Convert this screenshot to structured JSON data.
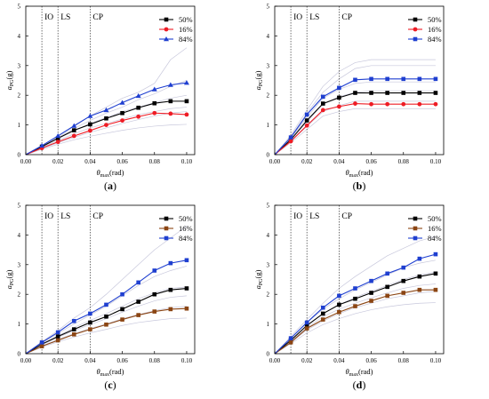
{
  "figure": {
    "panels": [
      {
        "label": "(a)",
        "label_plain": "a"
      },
      {
        "label": "(b)",
        "label_plain": "b"
      },
      {
        "label": "(c)",
        "label_plain": "c"
      },
      {
        "label": "(d)",
        "label_plain": "d"
      }
    ]
  },
  "colors": {
    "p50": "#000000",
    "p16": "#ee1c25",
    "p16_c": "#8b4513",
    "p84": "#1f3fd0",
    "individual": "#c8c8dc"
  },
  "chart_data": [
    {
      "type": "line",
      "panel": "a",
      "xlabel": "θmax(rad)",
      "ylabel": "aPG(g)",
      "xlim": [
        0,
        0.105
      ],
      "ylim": [
        0,
        5
      ],
      "xticks": [
        "0.00",
        "0.02",
        "0.04",
        "0.06",
        "0.08",
        "0.10"
      ],
      "yticks": [
        "0",
        "1",
        "2",
        "3",
        "4",
        "5"
      ],
      "limit_states": [
        {
          "name": "IO",
          "x": 0.01
        },
        {
          "name": "LS",
          "x": 0.02
        },
        {
          "name": "CP",
          "x": 0.04
        }
      ],
      "legend_position": "top-right",
      "x": [
        0.01,
        0.02,
        0.03,
        0.04,
        0.05,
        0.06,
        0.07,
        0.08,
        0.09,
        0.1
      ],
      "series": [
        {
          "name": "50%",
          "marker": "square",
          "color_key": "p50",
          "values": [
            0.27,
            0.55,
            0.82,
            1.02,
            1.22,
            1.4,
            1.58,
            1.73,
            1.8,
            1.8
          ]
        },
        {
          "name": "16%",
          "marker": "circle",
          "color_key": "p16",
          "values": [
            0.22,
            0.43,
            0.63,
            0.81,
            1.0,
            1.15,
            1.28,
            1.4,
            1.38,
            1.35
          ]
        },
        {
          "name": "84%",
          "marker": "triangle",
          "color_key": "p84",
          "values": [
            0.3,
            0.63,
            0.97,
            1.3,
            1.5,
            1.75,
            1.98,
            2.2,
            2.35,
            2.42
          ]
        }
      ],
      "individual_curves": [
        [
          0.3,
          0.62,
          0.95,
          1.3,
          1.6,
          1.9,
          2.1,
          2.4,
          3.2,
          3.6
        ],
        [
          0.28,
          0.58,
          0.88,
          1.15,
          1.4,
          1.6,
          1.85,
          2.05,
          2.3,
          2.5
        ],
        [
          0.26,
          0.54,
          0.8,
          1.05,
          1.25,
          1.45,
          1.6,
          1.75,
          1.9,
          2.0
        ],
        [
          0.24,
          0.48,
          0.7,
          0.9,
          1.05,
          1.2,
          1.35,
          1.45,
          1.55,
          1.6
        ],
        [
          0.2,
          0.4,
          0.58,
          0.75,
          0.9,
          1.05,
          1.18,
          1.3,
          1.4,
          1.45
        ],
        [
          0.18,
          0.35,
          0.5,
          0.62,
          0.72,
          0.82,
          0.9,
          0.96,
          1.0,
          1.02
        ]
      ]
    },
    {
      "type": "line",
      "panel": "b",
      "xlabel": "θmax(rad)",
      "ylabel": "aPG(g)",
      "xlim": [
        0,
        0.105
      ],
      "ylim": [
        0,
        5
      ],
      "xticks": [
        "0.00",
        "0.02",
        "0.04",
        "0.06",
        "0.08",
        "0.10"
      ],
      "yticks": [
        "0",
        "1",
        "2",
        "3",
        "4",
        "5"
      ],
      "limit_states": [
        {
          "name": "IO",
          "x": 0.01
        },
        {
          "name": "LS",
          "x": 0.02
        },
        {
          "name": "CP",
          "x": 0.04
        }
      ],
      "legend_position": "top-right",
      "x": [
        0.01,
        0.02,
        0.03,
        0.04,
        0.05,
        0.06,
        0.07,
        0.08,
        0.09,
        0.1
      ],
      "series": [
        {
          "name": "50%",
          "marker": "square",
          "color_key": "p50",
          "values": [
            0.5,
            1.15,
            1.72,
            1.92,
            2.08,
            2.08,
            2.08,
            2.08,
            2.08,
            2.08
          ]
        },
        {
          "name": "16%",
          "marker": "circle",
          "color_key": "p16",
          "values": [
            0.45,
            0.98,
            1.5,
            1.62,
            1.72,
            1.7,
            1.7,
            1.7,
            1.7,
            1.7
          ]
        },
        {
          "name": "84%",
          "marker": "square",
          "color_key": "p84",
          "values": [
            0.58,
            1.35,
            1.95,
            2.25,
            2.52,
            2.55,
            2.55,
            2.55,
            2.55,
            2.55
          ]
        }
      ],
      "individual_curves": [
        [
          0.65,
          1.5,
          2.3,
          2.8,
          3.1,
          3.2,
          3.2,
          3.2,
          3.2,
          3.2
        ],
        [
          0.6,
          1.4,
          2.1,
          2.55,
          2.9,
          3.0,
          3.0,
          3.0,
          3.0,
          3.0
        ],
        [
          0.55,
          1.25,
          1.9,
          2.2,
          2.4,
          2.45,
          2.45,
          2.45,
          2.45,
          2.45
        ],
        [
          0.5,
          1.1,
          1.7,
          1.95,
          2.1,
          2.15,
          2.15,
          2.15,
          2.15,
          2.15
        ],
        [
          0.45,
          0.95,
          1.45,
          1.65,
          1.8,
          1.8,
          1.8,
          1.8,
          1.8,
          1.8
        ],
        [
          0.4,
          0.85,
          1.3,
          1.45,
          1.55,
          1.55,
          1.55,
          1.55,
          1.55,
          1.55
        ]
      ]
    },
    {
      "type": "line",
      "panel": "c",
      "xlabel": "θmax(rad)",
      "ylabel": "aPG(g)",
      "xlim": [
        0,
        0.105
      ],
      "ylim": [
        0,
        5
      ],
      "xticks": [
        "0.00",
        "0.02",
        "0.04",
        "0.06",
        "0.08",
        "0.10"
      ],
      "yticks": [
        "0",
        "1",
        "2",
        "3",
        "4",
        "5"
      ],
      "limit_states": [
        {
          "name": "IO",
          "x": 0.01
        },
        {
          "name": "LS",
          "x": 0.02
        },
        {
          "name": "CP",
          "x": 0.04
        }
      ],
      "legend_position": "top-right",
      "x": [
        0.01,
        0.02,
        0.03,
        0.04,
        0.05,
        0.06,
        0.07,
        0.08,
        0.09,
        0.1
      ],
      "series": [
        {
          "name": "50%",
          "marker": "square",
          "color_key": "p50",
          "values": [
            0.32,
            0.58,
            0.82,
            1.05,
            1.25,
            1.5,
            1.75,
            2.0,
            2.15,
            2.2
          ]
        },
        {
          "name": "16%",
          "marker": "square",
          "color_key": "p16_c",
          "values": [
            0.25,
            0.45,
            0.65,
            0.82,
            0.98,
            1.15,
            1.3,
            1.42,
            1.5,
            1.52
          ]
        },
        {
          "name": "84%",
          "marker": "square",
          "color_key": "p84",
          "values": [
            0.38,
            0.72,
            1.1,
            1.35,
            1.65,
            2.0,
            2.4,
            2.8,
            3.05,
            3.15
          ]
        }
      ],
      "individual_curves": [
        [
          0.4,
          0.78,
          1.2,
          1.55,
          2.0,
          2.5,
          3.0,
          3.5,
          3.9,
          4.3
        ],
        [
          0.36,
          0.68,
          1.0,
          1.3,
          1.6,
          1.95,
          2.3,
          2.6,
          2.8,
          2.95
        ],
        [
          0.33,
          0.6,
          0.88,
          1.12,
          1.35,
          1.6,
          1.85,
          2.05,
          2.2,
          2.25
        ],
        [
          0.3,
          0.55,
          0.78,
          0.98,
          1.18,
          1.4,
          1.6,
          1.78,
          1.9,
          1.95
        ],
        [
          0.26,
          0.48,
          0.68,
          0.85,
          1.0,
          1.18,
          1.32,
          1.45,
          1.55,
          1.6
        ],
        [
          0.22,
          0.4,
          0.56,
          0.7,
          0.82,
          0.95,
          1.05,
          1.12,
          1.18,
          1.2
        ]
      ]
    },
    {
      "type": "line",
      "panel": "d",
      "xlabel": "θmax(rad)",
      "ylabel": "aPG(g)",
      "xlim": [
        0,
        0.105
      ],
      "ylim": [
        0,
        5
      ],
      "xticks": [
        "0.00",
        "0.02",
        "0.04",
        "0.06",
        "0.08",
        "0.10"
      ],
      "yticks": [
        "0",
        "1",
        "2",
        "3",
        "4",
        "5"
      ],
      "limit_states": [
        {
          "name": "IO",
          "x": 0.01
        },
        {
          "name": "LS",
          "x": 0.02
        },
        {
          "name": "CP",
          "x": 0.04
        }
      ],
      "legend_position": "top-right",
      "x": [
        0.01,
        0.02,
        0.03,
        0.04,
        0.05,
        0.06,
        0.07,
        0.08,
        0.09,
        0.1
      ],
      "series": [
        {
          "name": "50%",
          "marker": "square",
          "color_key": "p50",
          "values": [
            0.45,
            0.95,
            1.35,
            1.65,
            1.85,
            2.05,
            2.25,
            2.45,
            2.6,
            2.7
          ]
        },
        {
          "name": "16%",
          "marker": "square",
          "color_key": "p16_c",
          "values": [
            0.38,
            0.85,
            1.15,
            1.4,
            1.6,
            1.78,
            1.95,
            2.05,
            2.15,
            2.15
          ]
        },
        {
          "name": "84%",
          "marker": "square",
          "color_key": "p84",
          "values": [
            0.52,
            1.05,
            1.55,
            1.95,
            2.2,
            2.45,
            2.7,
            2.9,
            3.2,
            3.35
          ]
        }
      ],
      "individual_curves": [
        [
          0.58,
          1.15,
          1.7,
          2.2,
          2.6,
          2.95,
          3.3,
          3.55,
          3.8,
          3.95
        ],
        [
          0.52,
          1.05,
          1.5,
          1.85,
          2.15,
          2.4,
          2.65,
          2.9,
          3.05,
          3.15
        ],
        [
          0.46,
          0.95,
          1.35,
          1.65,
          1.9,
          2.1,
          2.3,
          2.5,
          2.65,
          2.75
        ],
        [
          0.42,
          0.88,
          1.25,
          1.5,
          1.7,
          1.88,
          2.05,
          2.2,
          2.3,
          2.35
        ],
        [
          0.38,
          0.8,
          1.1,
          1.35,
          1.55,
          1.7,
          1.85,
          1.95,
          2.05,
          2.1
        ],
        [
          0.34,
          0.7,
          0.98,
          1.18,
          1.35,
          1.48,
          1.58,
          1.65,
          1.7,
          1.72
        ]
      ]
    }
  ]
}
